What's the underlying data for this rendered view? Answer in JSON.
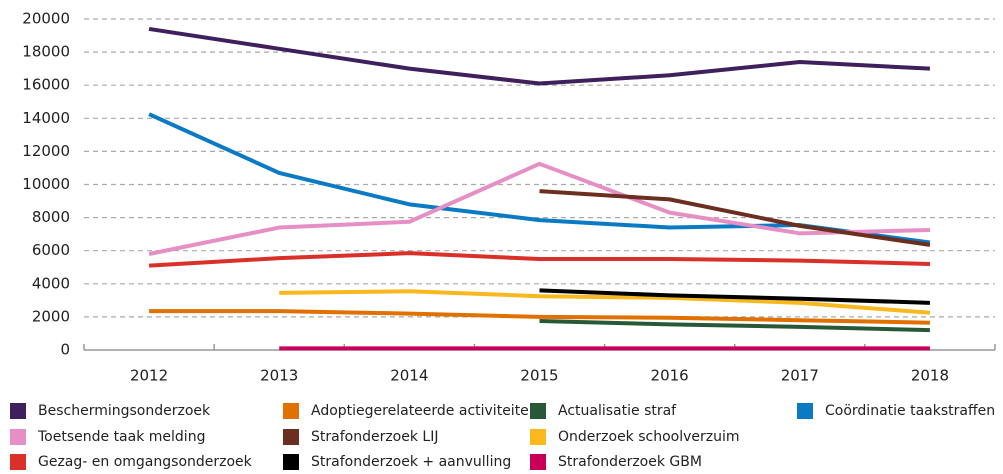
{
  "chart_data": {
    "type": "line",
    "categories": [
      "2012",
      "2013",
      "2014",
      "2015",
      "2016",
      "2017",
      "2018"
    ],
    "ylim": [
      0,
      20000
    ],
    "yticks": [
      0,
      2000,
      4000,
      6000,
      8000,
      10000,
      12000,
      14000,
      16000,
      18000,
      20000
    ],
    "grid": true,
    "series": [
      {
        "name": "Beschermingsonderzoek",
        "color": "#3f1f5c",
        "values": [
          19400,
          18200,
          17000,
          16100,
          16600,
          17400,
          17000
        ]
      },
      {
        "name": "Adoptiegerelateerde activiteiten",
        "color": "#e07000",
        "values": [
          2350,
          2350,
          2200,
          2000,
          1950,
          1800,
          1650
        ]
      },
      {
        "name": "Actualisatie straf",
        "color": "#275937",
        "values": [
          null,
          null,
          null,
          1750,
          1550,
          1400,
          1200
        ]
      },
      {
        "name": "Coördinatie taakstraffen",
        "color": "#0a7ac4",
        "values": [
          14250,
          10700,
          8800,
          7850,
          7400,
          7550,
          6500
        ]
      },
      {
        "name": "Toetsende taak melding",
        "color": "#e58fc4",
        "values": [
          5800,
          7400,
          7750,
          11250,
          8300,
          7050,
          7250
        ]
      },
      {
        "name": "Strafonderzoek LIJ",
        "color": "#6b2e1f",
        "values": [
          null,
          null,
          null,
          9600,
          9100,
          7500,
          6350
        ]
      },
      {
        "name": "Onderzoek schoolverzuim",
        "color": "#f9b81d",
        "values": [
          null,
          3450,
          3550,
          3250,
          3150,
          2850,
          2250
        ]
      },
      {
        "name": "Gezag- en omgangsonderzoek",
        "color": "#d9302a",
        "values": [
          5100,
          5550,
          5850,
          5500,
          5500,
          5400,
          5200
        ]
      },
      {
        "name": "Strafonderzoek + aanvulling",
        "color": "#000000",
        "values": [
          null,
          null,
          null,
          3600,
          3300,
          3100,
          2850
        ]
      },
      {
        "name": "Strafonderzoek GBM",
        "color": "#c8005a",
        "values": [
          null,
          100,
          100,
          100,
          100,
          100,
          100
        ]
      }
    ]
  }
}
